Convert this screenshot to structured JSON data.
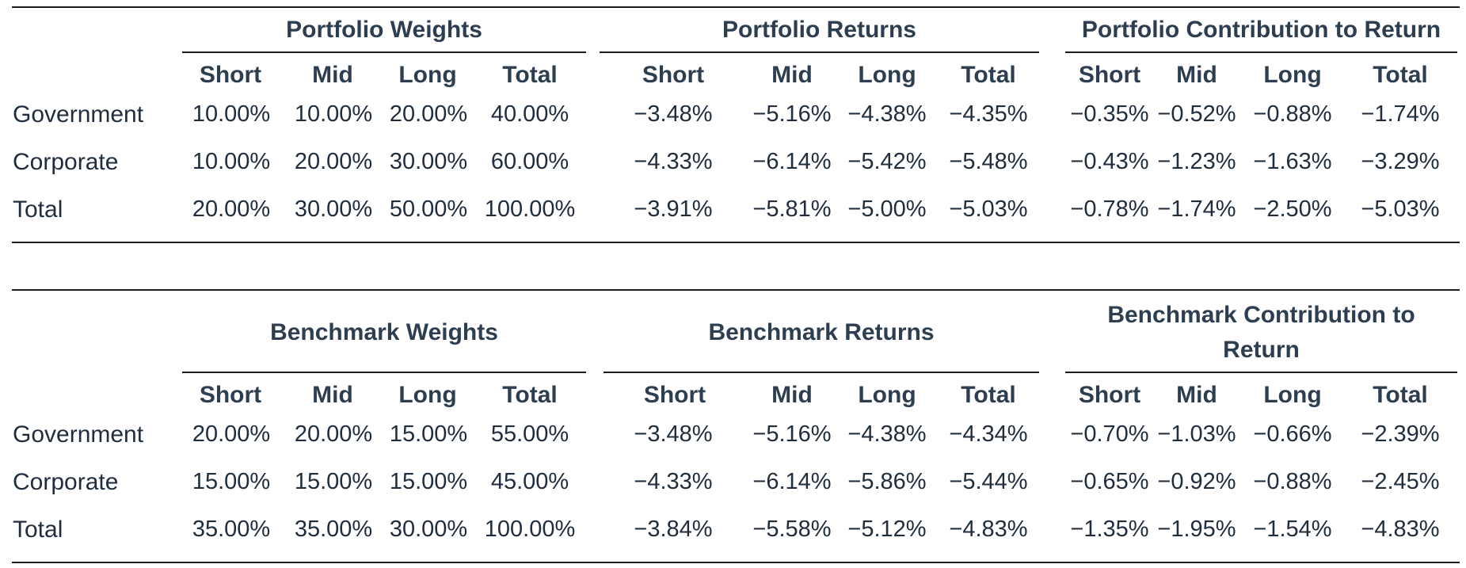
{
  "sub_headers": [
    "Short",
    "Mid",
    "Long",
    "Total"
  ],
  "row_labels": [
    "Government",
    "Corporate",
    "Total"
  ],
  "portfolio_table": {
    "groups": [
      "Portfolio Weights",
      "Portfolio Returns",
      "Portfolio Contribution to Return"
    ],
    "rows": [
      [
        "10.00%",
        "10.00%",
        "20.00%",
        "40.00%",
        "−3.48%",
        "−5.16%",
        "−4.38%",
        "−4.35%",
        "−0.35%",
        "−0.52%",
        "−0.88%",
        "−1.74%"
      ],
      [
        "10.00%",
        "20.00%",
        "30.00%",
        "60.00%",
        "−4.33%",
        "−6.14%",
        "−5.42%",
        "−5.48%",
        "−0.43%",
        "−1.23%",
        "−1.63%",
        "−3.29%"
      ],
      [
        "20.00%",
        "30.00%",
        "50.00%",
        "100.00%",
        "−3.91%",
        "−5.81%",
        "−5.00%",
        "−5.03%",
        "−0.78%",
        "−1.74%",
        "−2.50%",
        "−5.03%"
      ]
    ]
  },
  "benchmark_table": {
    "groups": [
      "Benchmark Weights",
      "Benchmark Returns",
      "Benchmark Contribution to",
      "Return"
    ],
    "rows": [
      [
        "20.00%",
        "20.00%",
        "15.00%",
        "55.00%",
        "−3.48%",
        "−5.16%",
        "−4.38%",
        "−4.34%",
        "−0.70%",
        "−1.03%",
        "−0.66%",
        "−2.39%"
      ],
      [
        "15.00%",
        "15.00%",
        "15.00%",
        "45.00%",
        "−4.33%",
        "−6.14%",
        "−5.86%",
        "−5.44%",
        "−0.65%",
        "−0.92%",
        "−0.88%",
        "−2.45%"
      ],
      [
        "35.00%",
        "35.00%",
        "30.00%",
        "100.00%",
        "−3.84%",
        "−5.58%",
        "−5.12%",
        "−4.83%",
        "−1.35%",
        "−1.95%",
        "−1.54%",
        "−4.83%"
      ]
    ]
  }
}
